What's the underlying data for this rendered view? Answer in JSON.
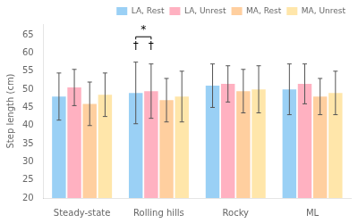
{
  "chart_data": {
    "type": "bar",
    "categories": [
      "Steady-state",
      "Rolling hills",
      "Rocky",
      "ML"
    ],
    "series": [
      {
        "name": "LA, Rest",
        "values": [
          48,
          49,
          51,
          50
        ],
        "errors": [
          6.5,
          8.5,
          6,
          7
        ]
      },
      {
        "name": "LA, Unrest",
        "values": [
          50.5,
          49.5,
          51.5,
          51.5
        ],
        "errors": [
          5,
          7.5,
          5,
          5.5
        ]
      },
      {
        "name": "MA, Rest",
        "values": [
          46,
          47,
          49.5,
          48
        ],
        "errors": [
          6,
          6,
          6,
          5
        ]
      },
      {
        "name": "MA, Unrest",
        "values": [
          48.5,
          48,
          50,
          49
        ],
        "errors": [
          6,
          7,
          6.5,
          6
        ]
      }
    ],
    "ylabel": "Step length (cm)",
    "ylim": [
      20,
      68
    ],
    "yticks": [
      20,
      25,
      30,
      35,
      40,
      45,
      50,
      55,
      60,
      65
    ],
    "grid": false,
    "legend": "upper right",
    "annotations": [
      {
        "type": "bracket",
        "text": "*",
        "category": "Rolling hills",
        "series": [
          "LA, Rest",
          "LA, Unrest"
        ],
        "y": 64.5
      },
      {
        "type": "text",
        "text": "†",
        "category": "Rolling hills",
        "series": "LA, Rest",
        "y": 60.5
      },
      {
        "type": "text",
        "text": "†",
        "category": "Rolling hills",
        "series": "LA, Unrest",
        "y": 60.5
      }
    ]
  }
}
